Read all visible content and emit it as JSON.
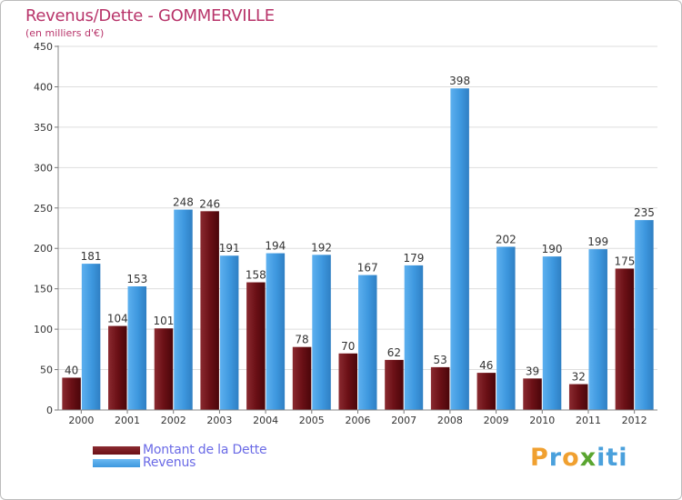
{
  "header": {
    "title": "Revenus/Dette - GOMMERVILLE",
    "subtitle": "(en milliers d'€)"
  },
  "chart_data": {
    "type": "bar",
    "title": "Revenus/Dette - GOMMERVILLE",
    "ylabel": "(en milliers d'€)",
    "xlabel": "",
    "ylim": [
      0,
      450
    ],
    "yticks": [
      0,
      50,
      100,
      150,
      200,
      250,
      300,
      350,
      400,
      450
    ],
    "grid": true,
    "categories": [
      "2000",
      "2001",
      "2002",
      "2003",
      "2004",
      "2005",
      "2006",
      "2007",
      "2008",
      "2009",
      "2010",
      "2011",
      "2012"
    ],
    "series": [
      {
        "name": "Montant de la Dette",
        "color": "#7a1a1f",
        "values": [
          40,
          104,
          101,
          246,
          158,
          78,
          70,
          62,
          53,
          46,
          39,
          32,
          175
        ]
      },
      {
        "name": "Revenus",
        "color": "#3d97de",
        "values": [
          181,
          153,
          248,
          191,
          194,
          192,
          167,
          179,
          398,
          202,
          190,
          199,
          235
        ]
      }
    ]
  },
  "legend": {
    "debt_label": "Montant de la Dette",
    "revenue_label": "Revenus",
    "debt_color": "#6b1016",
    "revenue_color": "#3d97de"
  },
  "logo": {
    "letters": [
      "P",
      "r",
      "o",
      "x",
      "i",
      "t",
      "i"
    ],
    "colors": [
      "#f0a030",
      "#4aa0dc",
      "#f0a030",
      "#5aa530",
      "#4aa0dc",
      "#4aa0dc",
      "#4aa0dc"
    ]
  }
}
